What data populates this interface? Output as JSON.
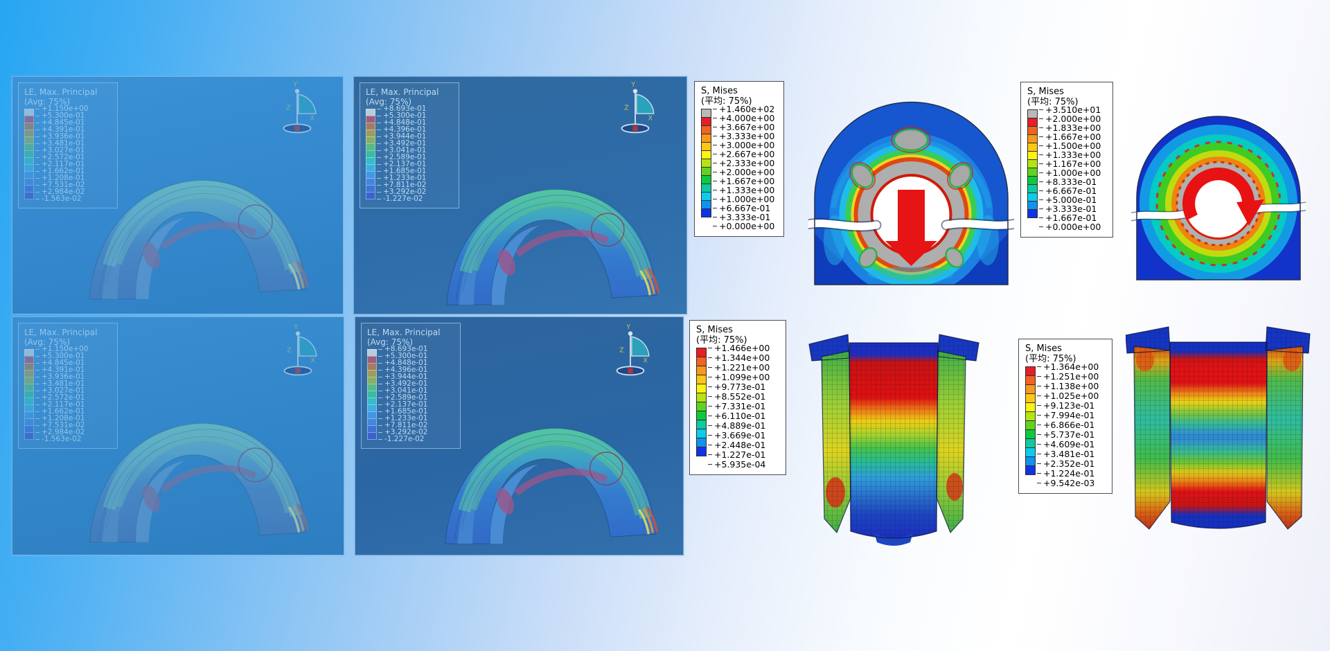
{
  "triad": {
    "x": "X",
    "y": "Y",
    "z": "Z"
  },
  "legends": {
    "le_a": {
      "title": "LE, Max. Principal",
      "subtitle": "(Avg: 75%)",
      "values": [
        "+1.150e+00",
        "+5.300e-01",
        "+4.845e-01",
        "+4.391e-01",
        "+3.936e-01",
        "+3.481e-01",
        "+3.027e-01",
        "+2.572e-01",
        "+2.117e-01",
        "+1.662e-01",
        "+1.208e-01",
        "+7.531e-02",
        "+2.984e-02",
        "-1.563e-02"
      ]
    },
    "le_b": {
      "title": "LE, Max. Principal",
      "subtitle": "(Avg: 75%)",
      "values": [
        "+8.693e-01",
        "+5.300e-01",
        "+4.848e-01",
        "+4.396e-01",
        "+3.944e-01",
        "+3.492e-01",
        "+3.041e-01",
        "+2.589e-01",
        "+2.137e-01",
        "+1.685e-01",
        "+1.233e-01",
        "+7.811e-02",
        "+3.292e-02",
        "-1.227e-02"
      ]
    },
    "mises_1": {
      "title": "S, Mises",
      "subtitle": "(平均: 75%)",
      "values": [
        "+1.460e+02",
        "+4.000e+00",
        "+3.667e+00",
        "+3.333e+00",
        "+3.000e+00",
        "+2.667e+00",
        "+2.333e+00",
        "+2.000e+00",
        "+1.667e+00",
        "+1.333e+00",
        "+1.000e+00",
        "+6.667e-01",
        "+3.333e-01",
        "+0.000e+00"
      ]
    },
    "mises_2": {
      "title": "S, Mises",
      "subtitle": "(平均: 75%)",
      "values": [
        "+3.510e+01",
        "+2.000e+00",
        "+1.833e+00",
        "+1.667e+00",
        "+1.500e+00",
        "+1.333e+00",
        "+1.167e+00",
        "+1.000e+00",
        "+8.333e-01",
        "+6.667e-01",
        "+5.000e-01",
        "+3.333e-01",
        "+1.667e-01",
        "+0.000e+00"
      ]
    },
    "mises_3": {
      "title": "S, Mises",
      "subtitle": "(平均: 75%)",
      "values": [
        "+1.466e+00",
        "+1.344e+00",
        "+1.221e+00",
        "+1.099e+00",
        "+9.773e-01",
        "+8.552e-01",
        "+7.331e-01",
        "+6.110e-01",
        "+4.889e-01",
        "+3.669e-01",
        "+2.448e-01",
        "+1.227e-01",
        "+5.935e-04"
      ]
    },
    "mises_4": {
      "title": "S, Mises",
      "subtitle": "(平均: 75%)",
      "values": [
        "+1.364e+00",
        "+1.251e+00",
        "+1.138e+00",
        "+1.025e+00",
        "+9.123e-01",
        "+7.994e-01",
        "+6.866e-01",
        "+5.737e-01",
        "+4.609e-01",
        "+3.481e-01",
        "+2.352e-01",
        "+1.224e-01",
        "+9.542e-03"
      ]
    }
  },
  "legend_colors": {
    "spectrum_gray13": [
      "#b9b9b9",
      "#e61e28",
      "#ef6421",
      "#f6991c",
      "#fdc716",
      "#fdf312",
      "#b6e412",
      "#5fd41f",
      "#0fc93e",
      "#0ccba0",
      "#0bcdeb",
      "#0f93ee",
      "#1033e8"
    ],
    "spectrum_12": [
      "#e61e28",
      "#ef6421",
      "#f6991c",
      "#fdc716",
      "#fdf312",
      "#b6e412",
      "#5fd41f",
      "#0fc93e",
      "#0ccba0",
      "#0bcdeb",
      "#0f93ee",
      "#1033e8"
    ],
    "le_muted_13": [
      "#c4d6e2",
      "#a85f7d",
      "#b07e5c",
      "#ab9f58",
      "#8fb660",
      "#60bf82",
      "#38c49e",
      "#36c4ca",
      "#40b4e8",
      "#429ce8",
      "#4689e4",
      "#4274da",
      "#3d62d0"
    ]
  },
  "colors": {
    "arrow_red": "#e61414",
    "background_left": "#27a6f2",
    "background_right": "#ffffff",
    "viewport_blue_bright": "#3488cd",
    "viewport_blue_dark": "#2d6ca9",
    "legend_box_border": "#4c4c55"
  }
}
